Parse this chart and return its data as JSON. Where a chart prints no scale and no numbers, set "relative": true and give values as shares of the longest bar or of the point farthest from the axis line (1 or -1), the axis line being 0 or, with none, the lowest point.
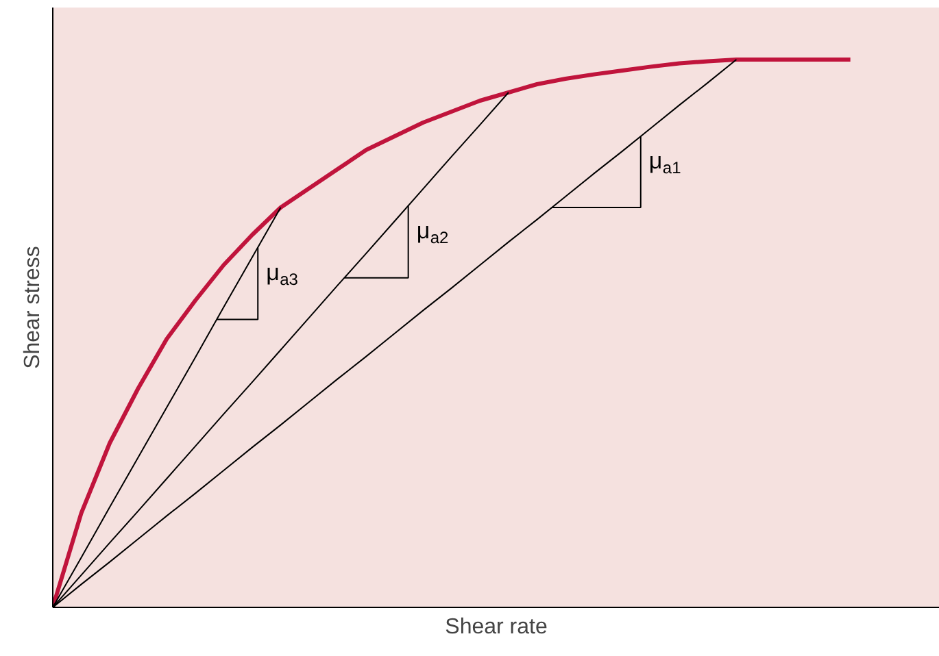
{
  "chart_data": {
    "type": "line",
    "relative": true,
    "xlabel": "Shear rate",
    "ylabel": "Shear stress",
    "grid": false,
    "marker": "none",
    "line_style": "solid",
    "categories": [
      null,
      null,
      null,
      null,
      null,
      null,
      null,
      null,
      null,
      null,
      null,
      null,
      null,
      null,
      null,
      null,
      null,
      null,
      null,
      null,
      null,
      null,
      null,
      null,
      null,
      null,
      null,
      null,
      null
    ],
    "series": [
      {
        "color": "#c0143c",
        "values": [
          0,
          0.172,
          0.3,
          0.4,
          0.49,
          0.56,
          0.625,
          0.68,
          0.73,
          0.765,
          0.8,
          0.835,
          0.86,
          0.885,
          0.905,
          0.925,
          0.94,
          0.955,
          0.965,
          0.973,
          0.98,
          0.987,
          0.993,
          0.997,
          1.0,
          1.0,
          1.0,
          1.0,
          1.0
        ]
      },
      {
        "color": "#000000",
        "values": [
          0,
          0.091,
          0.183,
          0.274,
          0.365,
          0.456,
          0.548,
          0.639,
          0.73,
          null,
          null,
          null,
          null,
          null,
          null,
          null,
          null,
          null,
          null,
          null,
          null,
          null,
          null,
          null,
          null,
          null,
          null,
          null,
          null
        ]
      },
      {
        "color": "#000000",
        "values": [
          0,
          0.059,
          0.118,
          0.176,
          0.235,
          0.294,
          0.353,
          0.411,
          0.47,
          0.529,
          0.588,
          0.646,
          0.705,
          0.764,
          0.823,
          0.881,
          0.94,
          null,
          null,
          null,
          null,
          null,
          null,
          null,
          null,
          null,
          null,
          null,
          null
        ]
      },
      {
        "color": "#000000",
        "values": [
          0,
          0.042,
          0.083,
          0.125,
          0.167,
          0.208,
          0.25,
          0.292,
          0.333,
          0.375,
          0.417,
          0.458,
          0.5,
          0.542,
          0.583,
          0.625,
          0.667,
          0.708,
          0.75,
          0.792,
          0.833,
          0.875,
          0.917,
          0.958,
          1.0,
          null,
          null,
          null,
          null
        ]
      }
    ],
    "annotations": [
      "μ$_{a3}$",
      "μ$_{a2}$",
      "μ$_{a1}$"
    ]
  }
}
